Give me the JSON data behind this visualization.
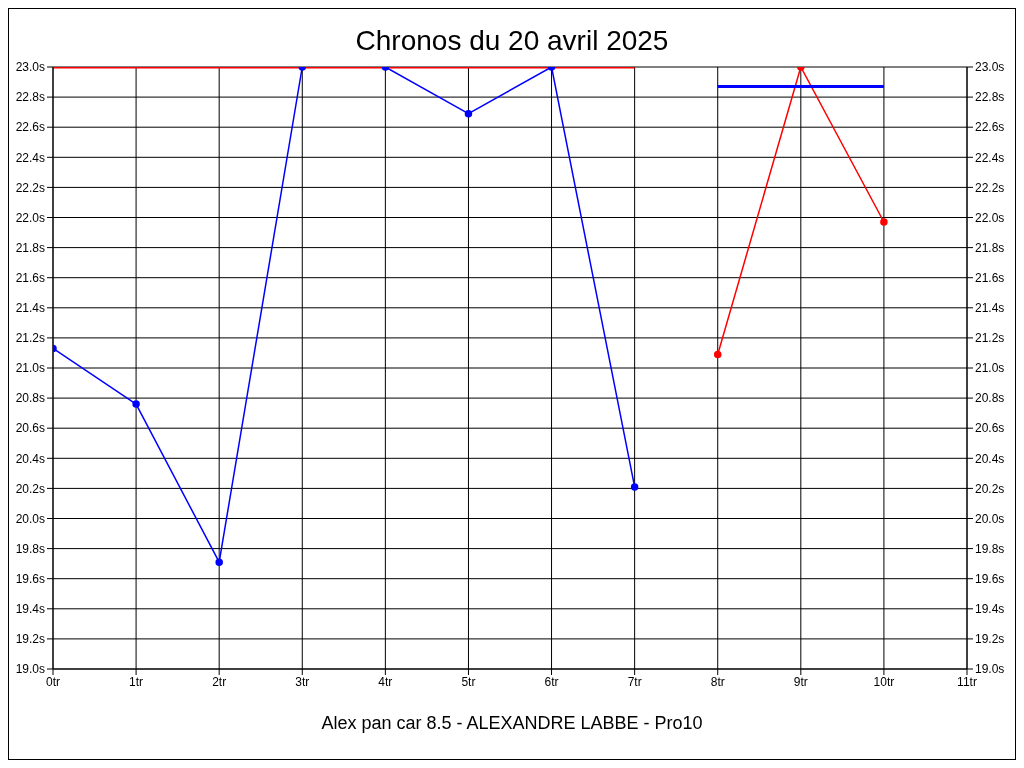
{
  "chart_data": {
    "type": "line",
    "title": "Chronos du 20 avril 2025",
    "annotations": [
      "Alex pan car 8.5 - ALEXANDRE LABBE - Pro10"
    ],
    "series": [
      {
        "color": "#0000ff",
        "x": [
          0,
          1,
          2,
          3,
          4,
          5,
          6,
          7
        ],
        "values": [
          21.13,
          20.76,
          19.71,
          23.0,
          23.0,
          22.69,
          23.0,
          20.21
        ]
      },
      {
        "color": "#ff0000",
        "x": [
          8,
          9,
          10
        ],
        "values": [
          21.09,
          23.0,
          21.97
        ]
      },
      {
        "color": "#ff0000",
        "x": [
          0,
          7
        ],
        "values": [
          23.0,
          23.0
        ],
        "marker": "none"
      },
      {
        "color": "#0000ff",
        "x": [
          8,
          10
        ],
        "values": [
          22.87,
          22.87
        ],
        "marker": "none"
      }
    ],
    "xlim": [
      0,
      11
    ],
    "xticks": [
      {
        "value": 0,
        "label": "0tr"
      },
      {
        "value": 1,
        "label": "1tr"
      },
      {
        "value": 2,
        "label": "2tr"
      },
      {
        "value": 3,
        "label": "3tr"
      },
      {
        "value": 4,
        "label": "4tr"
      },
      {
        "value": 5,
        "label": "5tr"
      },
      {
        "value": 6,
        "label": "6tr"
      },
      {
        "value": 7,
        "label": "7tr"
      },
      {
        "value": 8,
        "label": "8tr"
      },
      {
        "value": 9,
        "label": "9tr"
      },
      {
        "value": 10,
        "label": "10tr"
      },
      {
        "value": 11,
        "label": "11tr"
      }
    ],
    "ylim": [
      19.0,
      23.0
    ],
    "yticks": [
      {
        "value": 19.0,
        "label": "19.0s"
      },
      {
        "value": 19.2,
        "label": "19.2s"
      },
      {
        "value": 19.4,
        "label": "19.4s"
      },
      {
        "value": 19.6,
        "label": "19.6s"
      },
      {
        "value": 19.8,
        "label": "19.8s"
      },
      {
        "value": 20.0,
        "label": "20.0s"
      },
      {
        "value": 20.2,
        "label": "20.2s"
      },
      {
        "value": 20.4,
        "label": "20.4s"
      },
      {
        "value": 20.6,
        "label": "20.6s"
      },
      {
        "value": 20.8,
        "label": "20.8s"
      },
      {
        "value": 21.0,
        "label": "21.0s"
      },
      {
        "value": 21.2,
        "label": "21.2s"
      },
      {
        "value": 21.4,
        "label": "21.4s"
      },
      {
        "value": 21.6,
        "label": "21.6s"
      },
      {
        "value": 21.8,
        "label": "21.8s"
      },
      {
        "value": 22.0,
        "label": "22.0s"
      },
      {
        "value": 22.2,
        "label": "22.2s"
      },
      {
        "value": 22.4,
        "label": "22.4s"
      },
      {
        "value": 22.6,
        "label": "22.6s"
      },
      {
        "value": 22.8,
        "label": "22.8s"
      },
      {
        "value": 23.0,
        "label": "23.0s"
      }
    ],
    "y2lim": [
      19.0,
      23.0
    ],
    "y2ticks": [
      {
        "value": 19.0,
        "label": "19.0s"
      },
      {
        "value": 19.2,
        "label": "19.2s"
      },
      {
        "value": 19.4,
        "label": "19.4s"
      },
      {
        "value": 19.6,
        "label": "19.6s"
      },
      {
        "value": 19.8,
        "label": "19.8s"
      },
      {
        "value": 20.0,
        "label": "20.0s"
      },
      {
        "value": 20.2,
        "label": "20.2s"
      },
      {
        "value": 20.4,
        "label": "20.4s"
      },
      {
        "value": 20.6,
        "label": "20.6s"
      },
      {
        "value": 20.8,
        "label": "20.8s"
      },
      {
        "value": 21.0,
        "label": "21.0s"
      },
      {
        "value": 21.2,
        "label": "21.2s"
      },
      {
        "value": 21.4,
        "label": "21.4s"
      },
      {
        "value": 21.6,
        "label": "21.6s"
      },
      {
        "value": 21.8,
        "label": "21.8s"
      },
      {
        "value": 22.0,
        "label": "22.0s"
      },
      {
        "value": 22.2,
        "label": "22.2s"
      },
      {
        "value": 22.4,
        "label": "22.4s"
      },
      {
        "value": 22.6,
        "label": "22.6s"
      },
      {
        "value": 22.8,
        "label": "22.8s"
      },
      {
        "value": 23.0,
        "label": "23.0s"
      }
    ],
    "grid": true,
    "marker": "circle",
    "line_style": "solid",
    "legend": false
  }
}
